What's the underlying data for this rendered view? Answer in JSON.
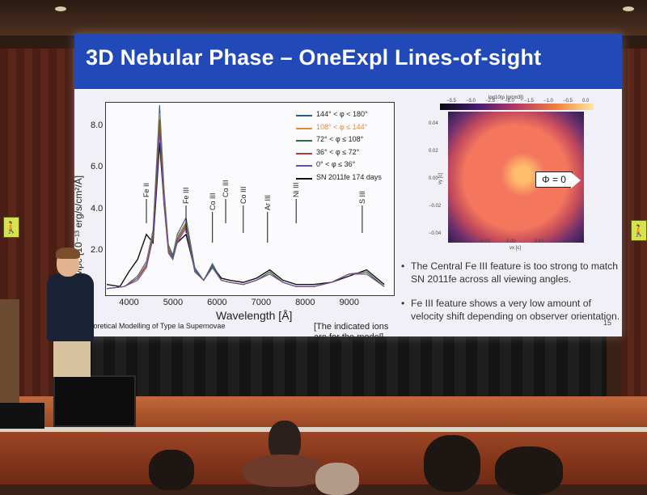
{
  "slide": {
    "title": "3D Nebular Phase – OneExpl Lines-of-sight",
    "footer": "Theoretical Modelling of Type Ia Supernovae",
    "note_line1": "[The indicated ions",
    "note_line2": "are for the model]",
    "slide_number": "15",
    "bullets": [
      "The Central Fe III feature is too strong to match SN 2011fe across all viewing angles.",
      "Fe III feature shows a very low amount of velocity shift depending on observer orientation."
    ],
    "phi_label": "Φ = 0",
    "colorbar_title": "log10(ρ [g/cm3])"
  },
  "colors": {
    "banner": "#2149b8",
    "series": [
      "#2a5f8a",
      "#e08a3c",
      "#2e6b3a",
      "#b03a3a",
      "#6b4fa0",
      "#111111"
    ]
  },
  "chart_data": {
    "type": "line",
    "xlabel": "Wavelength [Å]",
    "ylabel": "Fλ at 1 Mpc [10⁻¹³ erg/s/cm²/Å]",
    "xlim": [
      3500,
      10000
    ],
    "ylim": [
      0,
      9
    ],
    "xticks": [
      4000,
      5000,
      6000,
      7000,
      8000,
      9000
    ],
    "yticks": [
      "2.0",
      "4.0",
      "6.0",
      "8.0"
    ],
    "ion_labels": [
      {
        "label": "Fe II",
        "x": 4400
      },
      {
        "label": "Fe III",
        "x": 5300
      },
      {
        "label": "Co III",
        "x": 5900
      },
      {
        "label": "Co III",
        "x": 6200
      },
      {
        "label": "Co III",
        "x": 6600
      },
      {
        "label": "Ar III",
        "x": 7150
      },
      {
        "label": "Ni III",
        "x": 7800
      },
      {
        "label": "S III",
        "x": 9300
      }
    ],
    "series": [
      {
        "name": "144° < φ < 180°",
        "x": [
          3500,
          3900,
          4200,
          4400,
          4550,
          4700,
          4800,
          4900,
          5000,
          5100,
          5300,
          5500,
          5700,
          5900,
          6100,
          6300,
          6600,
          6900,
          7200,
          7500,
          7800,
          8200,
          8600,
          9000,
          9400,
          9800
        ],
        "y": [
          0.2,
          0.3,
          0.8,
          1.5,
          3.0,
          9.0,
          5.0,
          2.3,
          1.8,
          2.8,
          3.6,
          1.2,
          0.6,
          1.4,
          0.6,
          0.5,
          0.4,
          0.6,
          1.0,
          0.5,
          0.3,
          0.3,
          0.5,
          0.9,
          1.0,
          0.3
        ]
      },
      {
        "name": "108° < φ ≤ 144°",
        "x": [
          3500,
          3900,
          4200,
          4400,
          4550,
          4700,
          4800,
          4900,
          5000,
          5100,
          5300,
          5500,
          5700,
          5900,
          6100,
          6300,
          6600,
          6900,
          7200,
          7500,
          7800,
          8200,
          8600,
          9000,
          9400,
          9800
        ],
        "y": [
          0.2,
          0.3,
          0.7,
          1.4,
          2.9,
          8.6,
          4.8,
          2.2,
          1.7,
          2.7,
          3.4,
          1.1,
          0.6,
          1.3,
          0.6,
          0.5,
          0.4,
          0.6,
          1.0,
          0.5,
          0.3,
          0.3,
          0.5,
          0.9,
          1.0,
          0.3
        ]
      },
      {
        "name": "72° < φ ≤ 108°",
        "x": [
          3500,
          3900,
          4200,
          4400,
          4550,
          4700,
          4800,
          4900,
          5000,
          5100,
          5300,
          5500,
          5700,
          5900,
          6100,
          6300,
          6600,
          6900,
          7200,
          7500,
          7800,
          8200,
          8600,
          9000,
          9400,
          9800
        ],
        "y": [
          0.2,
          0.3,
          0.7,
          1.3,
          2.8,
          8.3,
          4.6,
          2.1,
          1.7,
          2.6,
          3.3,
          1.1,
          0.6,
          1.3,
          0.6,
          0.5,
          0.4,
          0.6,
          1.0,
          0.5,
          0.3,
          0.3,
          0.5,
          0.9,
          1.0,
          0.3
        ]
      },
      {
        "name": "36° < φ ≤ 72°",
        "x": [
          3500,
          3900,
          4200,
          4400,
          4550,
          4700,
          4800,
          4900,
          5000,
          5100,
          5300,
          5500,
          5700,
          5900,
          6100,
          6300,
          6600,
          6900,
          7200,
          7500,
          7800,
          8200,
          8600,
          9000,
          9400,
          9800
        ],
        "y": [
          0.2,
          0.3,
          0.7,
          1.3,
          2.7,
          8.0,
          4.4,
          2.0,
          1.6,
          2.5,
          3.2,
          1.0,
          0.6,
          1.2,
          0.6,
          0.5,
          0.4,
          0.6,
          0.9,
          0.5,
          0.3,
          0.3,
          0.5,
          0.9,
          0.9,
          0.3
        ]
      },
      {
        "name": "0° < φ ≤ 36°",
        "x": [
          3500,
          3900,
          4200,
          4400,
          4550,
          4700,
          4800,
          4900,
          5000,
          5100,
          5300,
          5500,
          5700,
          5900,
          6100,
          6300,
          6600,
          6900,
          7200,
          7500,
          7800,
          8200,
          8600,
          9000,
          9400,
          9800
        ],
        "y": [
          0.2,
          0.3,
          0.6,
          1.2,
          2.6,
          7.7,
          4.2,
          1.9,
          1.6,
          2.4,
          3.1,
          1.0,
          0.6,
          1.2,
          0.6,
          0.5,
          0.4,
          0.6,
          0.9,
          0.5,
          0.3,
          0.3,
          0.5,
          0.9,
          0.9,
          0.3
        ]
      },
      {
        "name": "SN 2011fe 174 days",
        "x": [
          3500,
          3800,
          4000,
          4200,
          4400,
          4550,
          4700,
          4800,
          4900,
          5000,
          5100,
          5300,
          5500,
          5700,
          5900,
          6100,
          6300,
          6600,
          6900,
          7200,
          7500,
          7800,
          8200,
          8600,
          9000,
          9400,
          9800
        ],
        "y": [
          0.4,
          0.3,
          1.0,
          1.6,
          2.8,
          2.4,
          7.2,
          4.3,
          2.2,
          1.8,
          2.4,
          2.8,
          1.1,
          0.6,
          1.3,
          0.7,
          0.6,
          0.5,
          0.7,
          1.1,
          0.6,
          0.4,
          0.4,
          0.5,
          0.8,
          1.1,
          0.4
        ]
      }
    ]
  },
  "sim_panel": {
    "colorbar_ticks": [
      "−3.5",
      "−3.0",
      "−2.5",
      "−2.0",
      "−1.5",
      "−1.0",
      "−0.5",
      "0.0"
    ],
    "x_ticks": [
      "−0.04",
      "−0.02",
      "0.00",
      "0.02",
      "0.04"
    ],
    "y_ticks": [
      "0.04",
      "0.02",
      "0.00",
      "−0.02",
      "−0.04"
    ],
    "x_label": "vx [c]",
    "y_label": "vy [c]"
  }
}
